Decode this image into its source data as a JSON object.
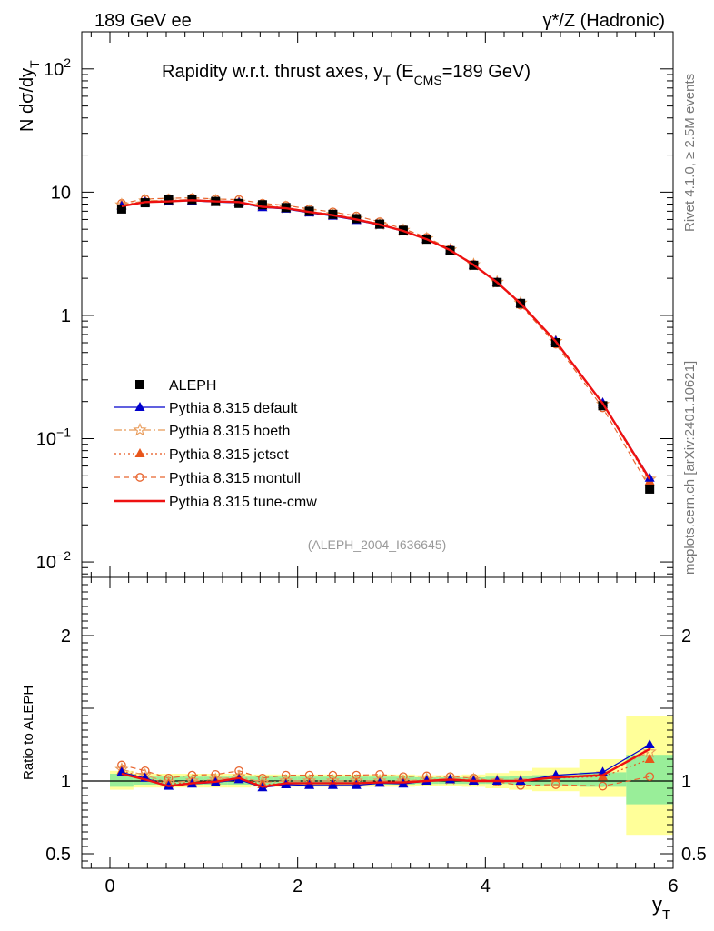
{
  "header": {
    "left": "189 GeV ee",
    "right": "γ*/Z (Hadronic)"
  },
  "side_labels": {
    "top": "Rivet 4.1.0, ≥ 2.5M events",
    "bottom": "mcplots.cern.ch [arXiv:2401.10621]"
  },
  "chart_data": [
    {
      "type": "line",
      "title": "Rapidity w.r.t. thrust axes, y_T (E_CMS=189 GeV)",
      "title_text": {
        "a": "Rapidity w.r.t. thrust axes, y",
        "a_sub": "T",
        "b": " (E",
        "b_sub": "CMS",
        "c": "=189 GeV)"
      },
      "ylabel": "N  dσ/dy_T",
      "ylabel_text": {
        "main": "N  dσ/dy",
        "sub": "T"
      },
      "yscale": "log",
      "ylim": [
        0.0075,
        200
      ],
      "xlim": [
        -0.3,
        6.0
      ],
      "ytick_labels": [
        {
          "v": 100,
          "base": "10",
          "exp": "2"
        },
        {
          "v": 10,
          "base": "10",
          "exp": ""
        },
        {
          "v": 1,
          "base": "1",
          "exp": ""
        },
        {
          "v": 0.1,
          "base": "10",
          "exp": "−1"
        },
        {
          "v": 0.01,
          "base": "10",
          "exp": "−2"
        }
      ],
      "watermark": "(ALEPH_2004_I636645)",
      "x": [
        0.125,
        0.375,
        0.625,
        0.875,
        1.125,
        1.375,
        1.625,
        1.875,
        2.125,
        2.375,
        2.625,
        2.875,
        3.125,
        3.375,
        3.625,
        3.875,
        4.125,
        4.375,
        4.75,
        5.25,
        5.75
      ],
      "x_edges": [
        0,
        0.25,
        0.5,
        0.75,
        1.0,
        1.25,
        1.5,
        1.75,
        2.0,
        2.25,
        2.5,
        2.75,
        3.0,
        3.25,
        3.5,
        3.75,
        4.0,
        4.25,
        4.5,
        5.0,
        5.5,
        6.0
      ],
      "series": [
        {
          "name": "ALEPH",
          "style": "data",
          "color": "#000000",
          "values": [
            7.3,
            8.2,
            8.7,
            8.7,
            8.4,
            8.1,
            7.9,
            7.5,
            7.0,
            6.6,
            6.1,
            5.5,
            4.9,
            4.15,
            3.35,
            2.55,
            1.85,
            1.25,
            0.6,
            0.185,
            0.039
          ]
        },
        {
          "name": "Pythia 8.315 default",
          "style": "default",
          "color": "#0000cc",
          "values": [
            7.7,
            8.3,
            8.4,
            8.5,
            8.3,
            8.2,
            7.5,
            7.3,
            6.8,
            6.4,
            5.9,
            5.4,
            4.8,
            4.15,
            3.38,
            2.55,
            1.85,
            1.25,
            0.62,
            0.195,
            0.048
          ]
        },
        {
          "name": "Pythia 8.315 hoeth",
          "style": "hoeth",
          "color": "#e89a58",
          "values": [
            7.9,
            8.5,
            8.6,
            8.7,
            8.5,
            8.3,
            7.8,
            7.5,
            7.0,
            6.6,
            6.1,
            5.5,
            4.9,
            4.2,
            3.4,
            2.58,
            1.86,
            1.26,
            0.615,
            0.19,
            0.047
          ]
        },
        {
          "name": "Pythia 8.315 jetset",
          "style": "jetset",
          "color": "#e8551a",
          "values": [
            7.8,
            8.4,
            8.5,
            8.6,
            8.4,
            8.3,
            7.7,
            7.4,
            6.9,
            6.5,
            6.0,
            5.45,
            4.85,
            4.18,
            3.38,
            2.57,
            1.85,
            1.25,
            0.61,
            0.19,
            0.045
          ]
        },
        {
          "name": "Pythia 8.315 montull",
          "style": "montull",
          "color": "#e8642e",
          "values": [
            8.1,
            8.8,
            8.9,
            9.0,
            8.8,
            8.7,
            8.1,
            7.8,
            7.3,
            6.9,
            6.4,
            5.75,
            5.05,
            4.3,
            3.45,
            2.6,
            1.84,
            1.21,
            0.585,
            0.178,
            0.04
          ]
        },
        {
          "name": "Pythia 8.315 tune-cmw",
          "style": "cmw",
          "color": "#ee1111",
          "values": [
            7.7,
            8.3,
            8.4,
            8.6,
            8.4,
            8.3,
            7.6,
            7.4,
            6.9,
            6.5,
            6.0,
            5.45,
            4.85,
            4.15,
            3.38,
            2.57,
            1.85,
            1.25,
            0.615,
            0.193,
            0.047
          ]
        }
      ]
    },
    {
      "type": "line",
      "ylabel": "Ratio to ALEPH",
      "xlabel_text": {
        "main": "y",
        "sub": "T"
      },
      "xlim": [
        -0.3,
        6.0
      ],
      "ylim": [
        0.4,
        2.4
      ],
      "x_tick_labels": [
        "0",
        "2",
        "4",
        "6"
      ],
      "y_tick_labels": [
        "0.5",
        "1",
        "2"
      ],
      "bands": {
        "stat": [
          [
            0.96,
            1.05
          ],
          [
            0.975,
            1.03
          ],
          [
            0.975,
            1.03
          ],
          [
            0.975,
            1.03
          ],
          [
            0.975,
            1.03
          ],
          [
            0.975,
            1.03
          ],
          [
            0.975,
            1.03
          ],
          [
            0.975,
            1.03
          ],
          [
            0.975,
            1.03
          ],
          [
            0.975,
            1.03
          ],
          [
            0.975,
            1.03
          ],
          [
            0.975,
            1.03
          ],
          [
            0.975,
            1.03
          ],
          [
            0.98,
            1.025
          ],
          [
            0.98,
            1.025
          ],
          [
            0.98,
            1.025
          ],
          [
            0.98,
            1.03
          ],
          [
            0.975,
            1.035
          ],
          [
            0.97,
            1.04
          ],
          [
            0.96,
            1.06
          ],
          [
            0.84,
            1.18
          ]
        ],
        "total": [
          [
            0.94,
            1.07
          ],
          [
            0.955,
            1.05
          ],
          [
            0.955,
            1.05
          ],
          [
            0.955,
            1.05
          ],
          [
            0.955,
            1.05
          ],
          [
            0.955,
            1.05
          ],
          [
            0.96,
            1.045
          ],
          [
            0.96,
            1.045
          ],
          [
            0.96,
            1.045
          ],
          [
            0.96,
            1.045
          ],
          [
            0.96,
            1.045
          ],
          [
            0.96,
            1.045
          ],
          [
            0.96,
            1.045
          ],
          [
            0.965,
            1.04
          ],
          [
            0.965,
            1.04
          ],
          [
            0.96,
            1.045
          ],
          [
            0.95,
            1.055
          ],
          [
            0.94,
            1.07
          ],
          [
            0.93,
            1.09
          ],
          [
            0.89,
            1.15
          ],
          [
            0.63,
            1.45
          ]
        ]
      },
      "series": [
        {
          "name": "Pythia 8.315 default",
          "style": "default",
          "color": "#0000cc",
          "values": [
            1.06,
            1.02,
            0.965,
            0.98,
            0.99,
            1.01,
            0.955,
            0.975,
            0.97,
            0.97,
            0.97,
            0.985,
            0.98,
            1.0,
            1.01,
            1.0,
            1.0,
            1.0,
            1.04,
            1.06,
            1.25
          ]
        },
        {
          "name": "Pythia 8.315 hoeth",
          "style": "hoeth",
          "color": "#e89a58",
          "values": [
            1.08,
            1.04,
            0.99,
            1.0,
            1.01,
            1.03,
            0.99,
            1.0,
            1.0,
            1.0,
            1.0,
            1.0,
            1.0,
            1.01,
            1.015,
            1.01,
            1.0,
            1.0,
            1.025,
            1.05,
            1.2
          ]
        },
        {
          "name": "Pythia 8.315 jetset",
          "style": "jetset",
          "color": "#e8551a",
          "values": [
            1.07,
            1.025,
            0.98,
            0.99,
            1.0,
            1.02,
            0.975,
            0.985,
            0.985,
            0.985,
            0.985,
            0.99,
            0.99,
            1.005,
            1.01,
            1.005,
            1.0,
            1.0,
            1.02,
            1.03,
            1.15
          ]
        },
        {
          "name": "Pythia 8.315 montull",
          "style": "montull",
          "color": "#e8642e",
          "values": [
            1.11,
            1.07,
            1.02,
            1.04,
            1.045,
            1.07,
            1.02,
            1.04,
            1.04,
            1.04,
            1.04,
            1.045,
            1.03,
            1.035,
            1.03,
            1.02,
            0.995,
            0.97,
            0.975,
            0.965,
            1.03
          ]
        },
        {
          "name": "Pythia 8.315 tune-cmw",
          "style": "cmw",
          "color": "#ee1111",
          "values": [
            1.05,
            1.01,
            0.965,
            0.985,
            0.995,
            1.02,
            0.96,
            0.985,
            0.985,
            0.985,
            0.985,
            0.99,
            0.99,
            1.0,
            1.01,
            1.0,
            1.0,
            1.0,
            1.025,
            1.04,
            1.22
          ]
        }
      ]
    }
  ]
}
